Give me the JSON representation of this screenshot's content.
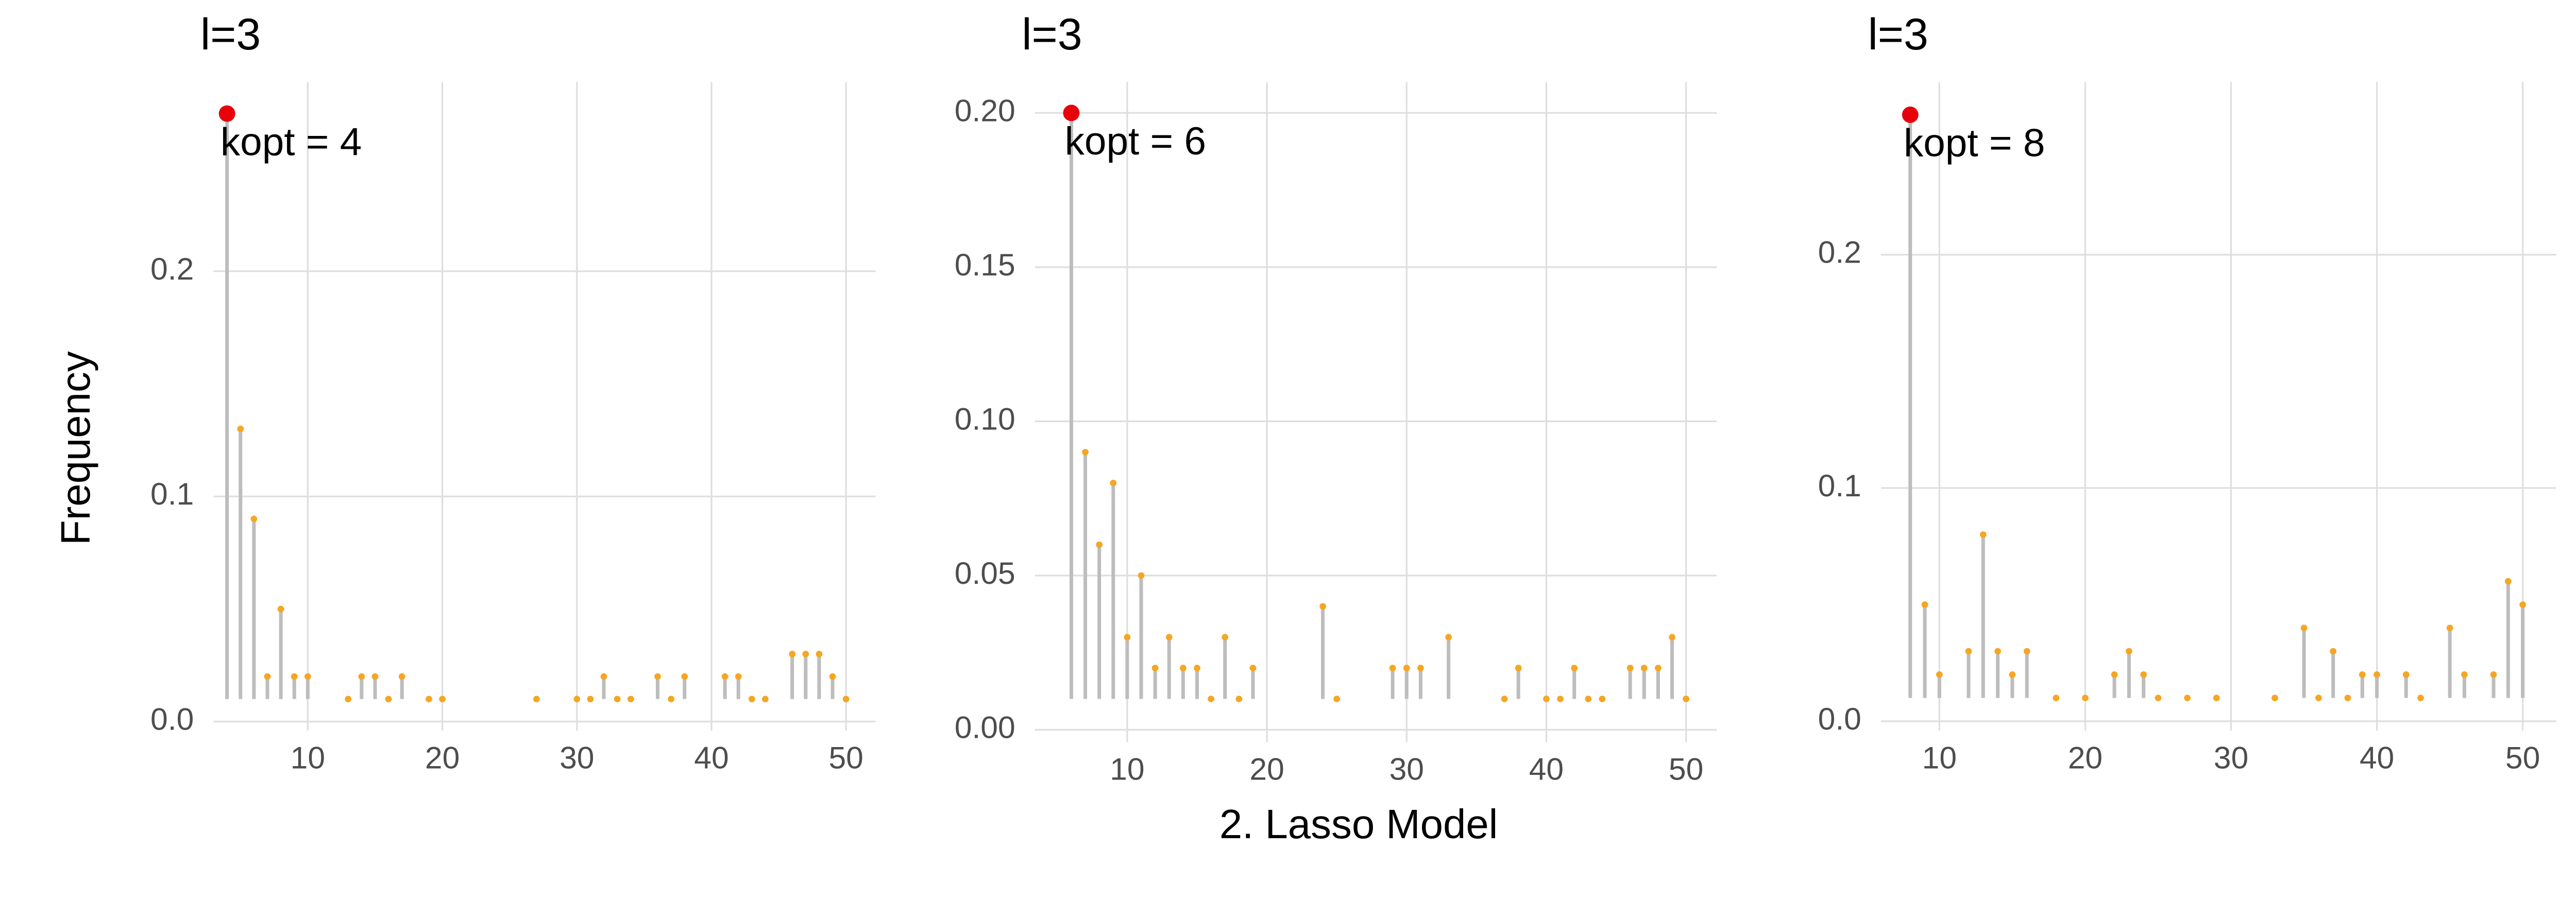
{
  "ylabel": "Frequency",
  "xlabel": "2. Lasso Model",
  "chart_data": [
    {
      "type": "lollipop",
      "title": "l=3",
      "annotation": "kopt = 4",
      "x": [
        4,
        5,
        6,
        7,
        8,
        9,
        10,
        13,
        14,
        15,
        16,
        17,
        19,
        20,
        27,
        30,
        31,
        32,
        33,
        34,
        36,
        37,
        38,
        41,
        42,
        43,
        44,
        46,
        47,
        48,
        49,
        50
      ],
      "values": [
        0.27,
        0.13,
        0.09,
        0.02,
        0.05,
        0.02,
        0.02,
        0.01,
        0.02,
        0.02,
        0.01,
        0.02,
        0.01,
        0.01,
        0.01,
        0.01,
        0.01,
        0.02,
        0.01,
        0.01,
        0.02,
        0.01,
        0.02,
        0.02,
        0.02,
        0.01,
        0.01,
        0.03,
        0.03,
        0.03,
        0.02,
        0.01
      ],
      "xlim": [
        3,
        52.2
      ],
      "ylim": [
        -0.004,
        0.284
      ],
      "xticks": [
        10,
        20,
        30,
        40,
        50
      ],
      "yticks": [
        {
          "value": 0,
          "label": "0.0"
        },
        0.1,
        0.2
      ],
      "grid": true,
      "stem_color": "#bdbdbd",
      "color": "#f5a623",
      "highlight_color": "#e8000b"
    },
    {
      "type": "lollipop",
      "title": "l=3",
      "annotation": "kopt = 6",
      "x": [
        6,
        7,
        8,
        9,
        10,
        11,
        12,
        13,
        14,
        15,
        16,
        17,
        18,
        19,
        24,
        25,
        29,
        30,
        31,
        33,
        37,
        38,
        40,
        41,
        42,
        43,
        44,
        46,
        47,
        48,
        49,
        50
      ],
      "values": [
        0.2,
        0.09,
        0.06,
        0.08,
        0.03,
        0.05,
        0.02,
        0.03,
        0.02,
        0.02,
        0.01,
        0.03,
        0.01,
        0.02,
        0.04,
        0.01,
        0.02,
        0.02,
        0.02,
        0.03,
        0.01,
        0.02,
        0.01,
        0.01,
        0.02,
        0.01,
        0.01,
        0.02,
        0.02,
        0.02,
        0.03,
        0.01
      ],
      "xlim": [
        3.4,
        52.2
      ],
      "ylim": [
        -0.004,
        0.21
      ],
      "xticks": [
        10,
        20,
        30,
        40,
        50
      ],
      "yticks": [
        {
          "value": 0,
          "label": "0.00"
        },
        0.05,
        {
          "value": 0.1,
          "label": "0.10"
        },
        0.15,
        {
          "value": 0.2,
          "label": "0.20"
        }
      ],
      "grid": true,
      "stem_color": "#bdbdbd",
      "color": "#f5a623",
      "highlight_color": "#e8000b"
    },
    {
      "type": "lollipop",
      "title": "l=3",
      "annotation": "kopt = 8",
      "x": [
        8,
        9,
        10,
        12,
        13,
        14,
        15,
        16,
        18,
        20,
        22,
        23,
        24,
        25,
        27,
        29,
        33,
        35,
        36,
        37,
        38,
        39,
        40,
        42,
        43,
        45,
        46,
        48,
        49,
        50
      ],
      "values": [
        0.26,
        0.05,
        0.02,
        0.03,
        0.08,
        0.03,
        0.02,
        0.03,
        0.01,
        0.01,
        0.02,
        0.03,
        0.02,
        0.01,
        0.01,
        0.01,
        0.01,
        0.04,
        0.01,
        0.03,
        0.01,
        0.02,
        0.02,
        0.02,
        0.01,
        0.04,
        0.02,
        0.02,
        0.06,
        0.05
      ],
      "xlim": [
        6,
        52.3
      ],
      "ylim": [
        -0.004,
        0.274
      ],
      "xticks": [
        10,
        20,
        30,
        40,
        50
      ],
      "yticks": [
        {
          "value": 0,
          "label": "0.0"
        },
        0.1,
        0.2
      ],
      "grid": true,
      "stem_color": "#bdbdbd",
      "color": "#f5a623",
      "highlight_color": "#e8000b"
    }
  ]
}
